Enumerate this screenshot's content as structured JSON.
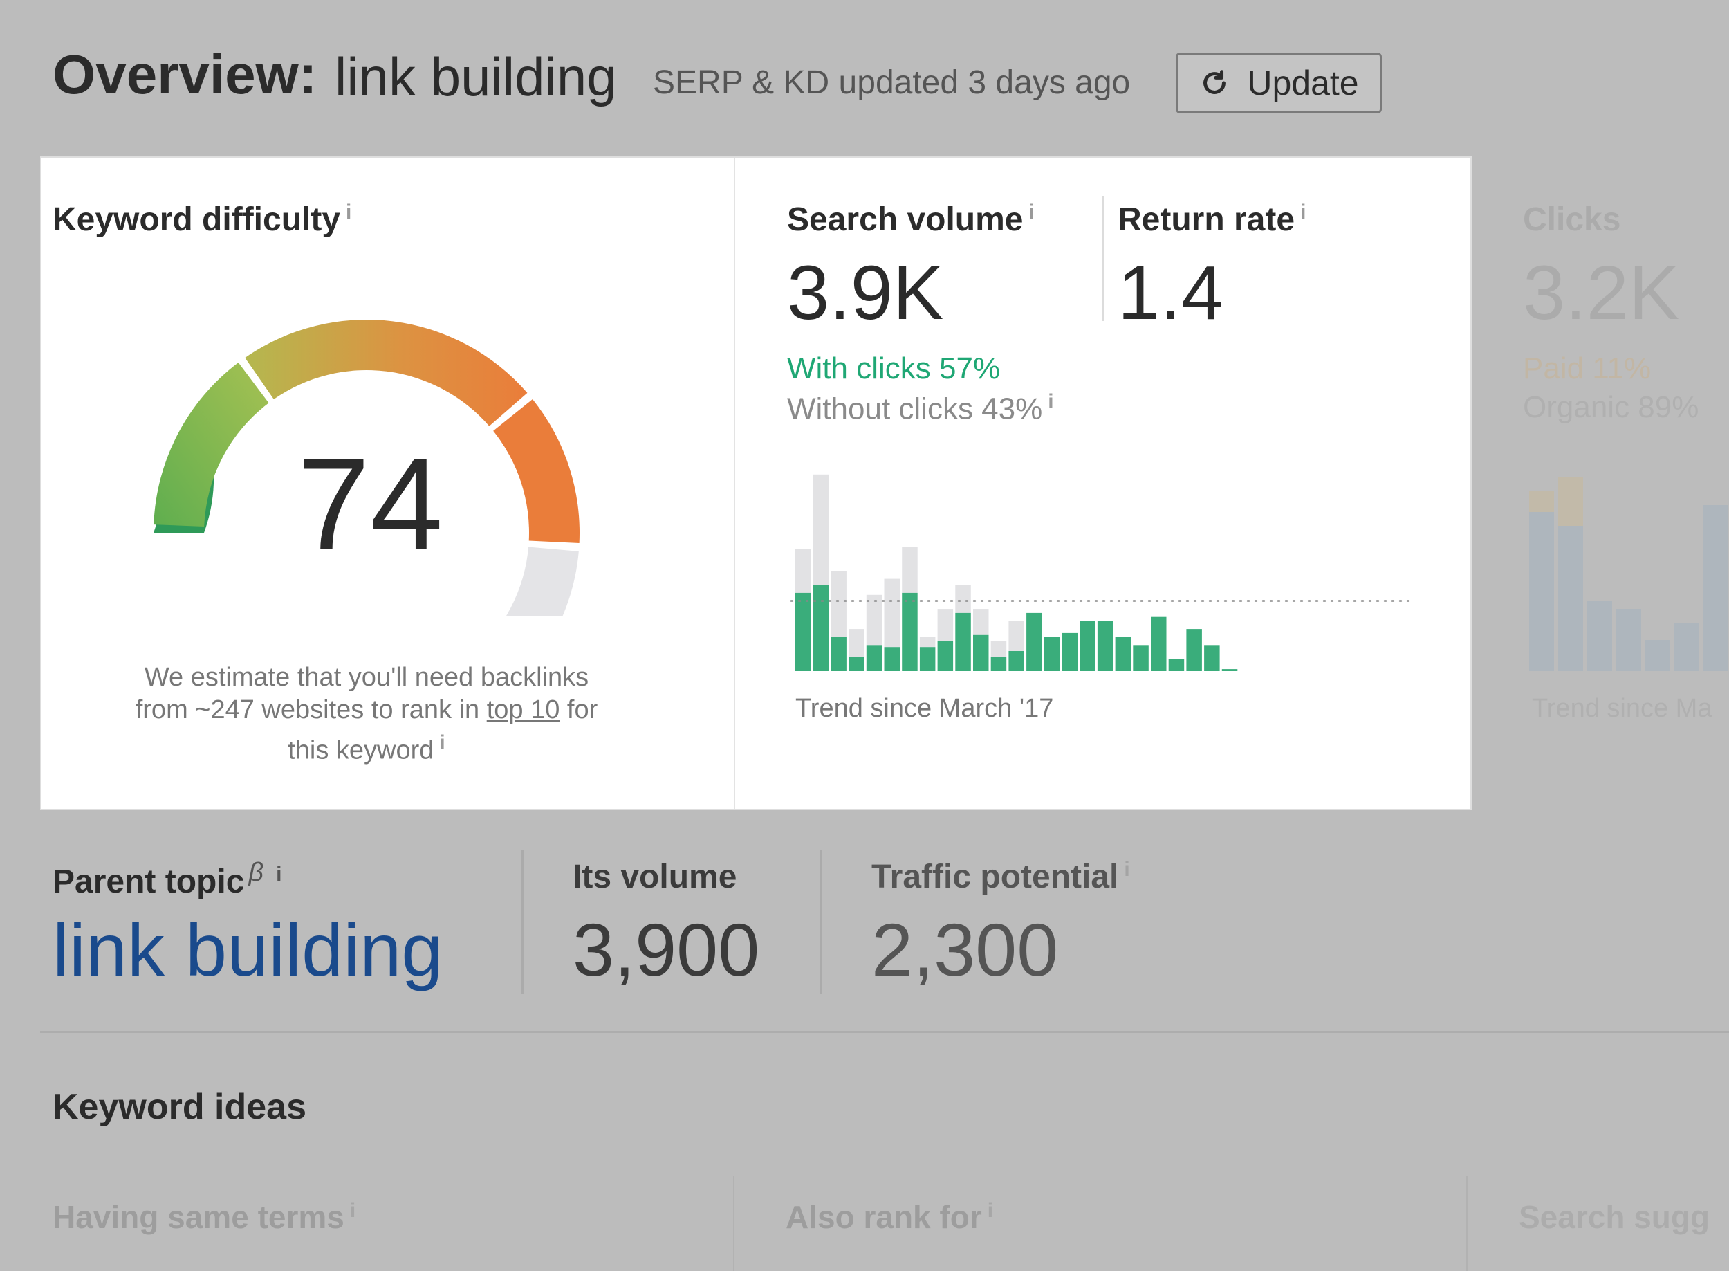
{
  "header": {
    "title": "Overview:",
    "keyword": "link building",
    "status": "SERP & KD updated 3 days ago",
    "update_label": "Update",
    "update_icon": "refresh-icon"
  },
  "keyword_difficulty": {
    "title": "Keyword difficulty",
    "value": "74",
    "score": 74,
    "max": 100,
    "desc_1": "We estimate that you'll need backlinks",
    "desc_2": "from ~247 websites to rank in",
    "desc_link": "top 10",
    "desc_3": "for",
    "desc_4": "this keyword",
    "colors": {
      "green_dark": "#2f9a58",
      "green": "#8bc34a",
      "yellow": "#c9b04a",
      "orange": "#ea7d3a",
      "track": "#e4e4e7"
    }
  },
  "search_volume": {
    "title": "Search volume",
    "value": "3.9K",
    "with_clicks": "With clicks 57%",
    "without_clicks": "Without clicks 43%",
    "trend_label": "Trend since March '17",
    "colors": {
      "with_clicks": "#3aad7b",
      "without_clicks": "#e2e2e4"
    }
  },
  "return_rate": {
    "title": "Return rate",
    "value": "1.4"
  },
  "clicks": {
    "title": "Clicks",
    "value": "3.2K",
    "paid": "Paid 11%",
    "organic": "Organic 89%",
    "trend_label": "Trend since Ma"
  },
  "info_glyph": "i",
  "beta_glyph": "β",
  "parent_topic": {
    "title": "Parent topic",
    "value": "link building"
  },
  "its_volume": {
    "title": "Its volume",
    "value": "3,900"
  },
  "traffic_potential": {
    "title": "Traffic potential",
    "value": "2,300"
  },
  "keyword_ideas": {
    "title": "Keyword ideas",
    "tabs": [
      "Having same terms",
      "Also rank for",
      "Search sugg"
    ]
  },
  "chart_data": {
    "type": "bar",
    "stacked": true,
    "x": [
      "1",
      "2",
      "3",
      "4",
      "5",
      "6",
      "7",
      "8",
      "9",
      "10",
      "11",
      "12",
      "13",
      "14",
      "15",
      "16",
      "17",
      "18",
      "19",
      "20",
      "21",
      "22",
      "23",
      "24",
      "25",
      "26",
      "27",
      "28",
      "29",
      "30",
      "31",
      "32",
      "33"
    ],
    "series": [
      {
        "name": "With clicks",
        "values": [
          39,
          43,
          17,
          7,
          13,
          12,
          39,
          12,
          15,
          29,
          18,
          7,
          10,
          29,
          17,
          19,
          25,
          25,
          17,
          13,
          27,
          6,
          21,
          13,
          1,
          0,
          0,
          0,
          0,
          0,
          0,
          0,
          0
        ]
      },
      {
        "name": "Without clicks",
        "values": [
          22,
          55,
          33,
          14,
          25,
          34,
          23,
          5,
          16,
          14,
          13,
          8,
          15,
          0,
          0,
          0,
          0,
          0,
          0,
          0,
          0,
          0,
          0,
          0,
          0,
          0,
          0,
          0,
          0,
          0,
          0,
          0,
          0
        ]
      }
    ],
    "reference_line": 35,
    "xlabel": "Trend since March '17",
    "ylim": [
      0,
      100
    ]
  }
}
